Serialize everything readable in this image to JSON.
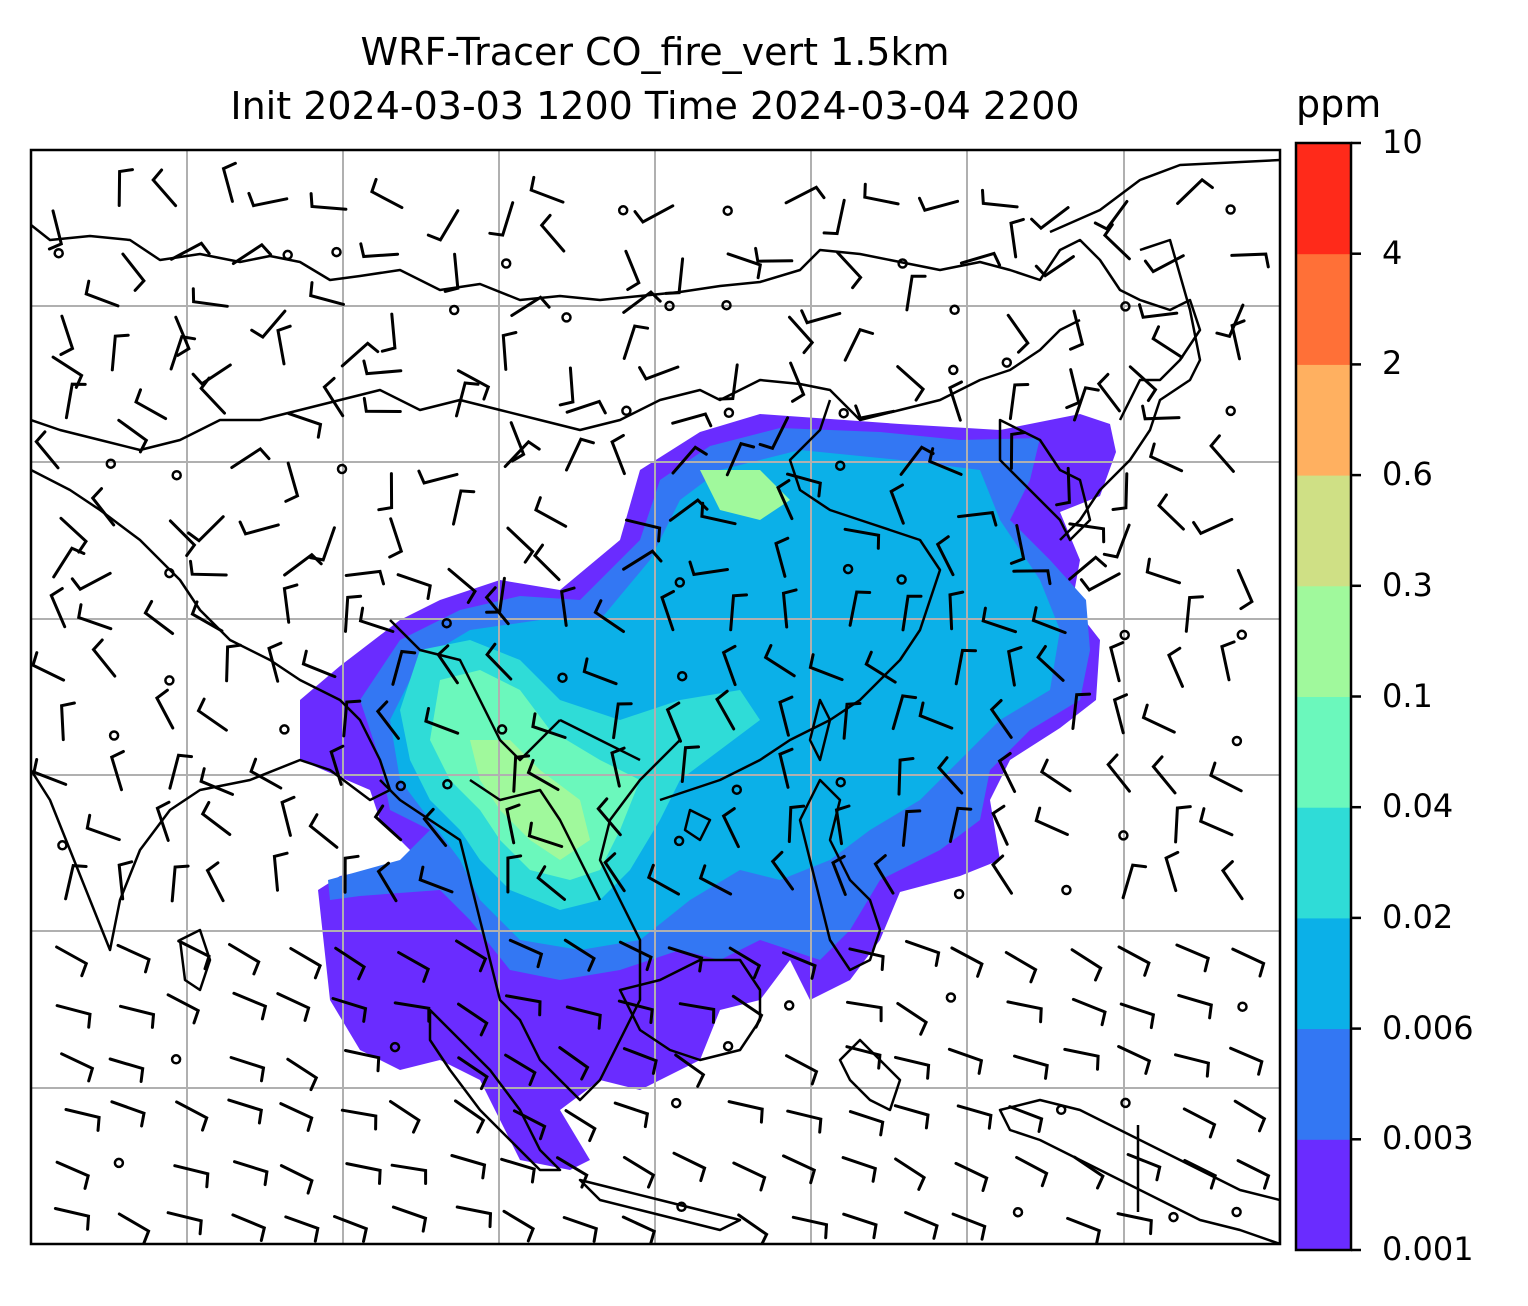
{
  "title": {
    "line1": "WRF-Tracer CO_fire_vert 1.5km",
    "line2": "Init 2024-03-03 1200 Time 2024-03-04 2200"
  },
  "colorbar": {
    "unit": "ppm",
    "tick_labels": [
      "0.001",
      "0.003",
      "0.006",
      "0.02",
      "0.04",
      "0.1",
      "0.3",
      "0.6",
      "2",
      "4",
      "10"
    ],
    "colors": [
      "#6a2cff",
      "#3377f3",
      "#0bb0e8",
      "#2fdcd7",
      "#6bf8bc",
      "#a0f99c",
      "#cfe085",
      "#ffb060",
      "#ff7037",
      "#ff2a1a"
    ]
  },
  "map": {
    "variable": "CO_fire_vert",
    "level": "1.5km",
    "features": [
      "coastlines",
      "country borders",
      "lat-lon gridlines",
      "wind barbs"
    ],
    "gridline_color": "#b0b0b0"
  }
}
